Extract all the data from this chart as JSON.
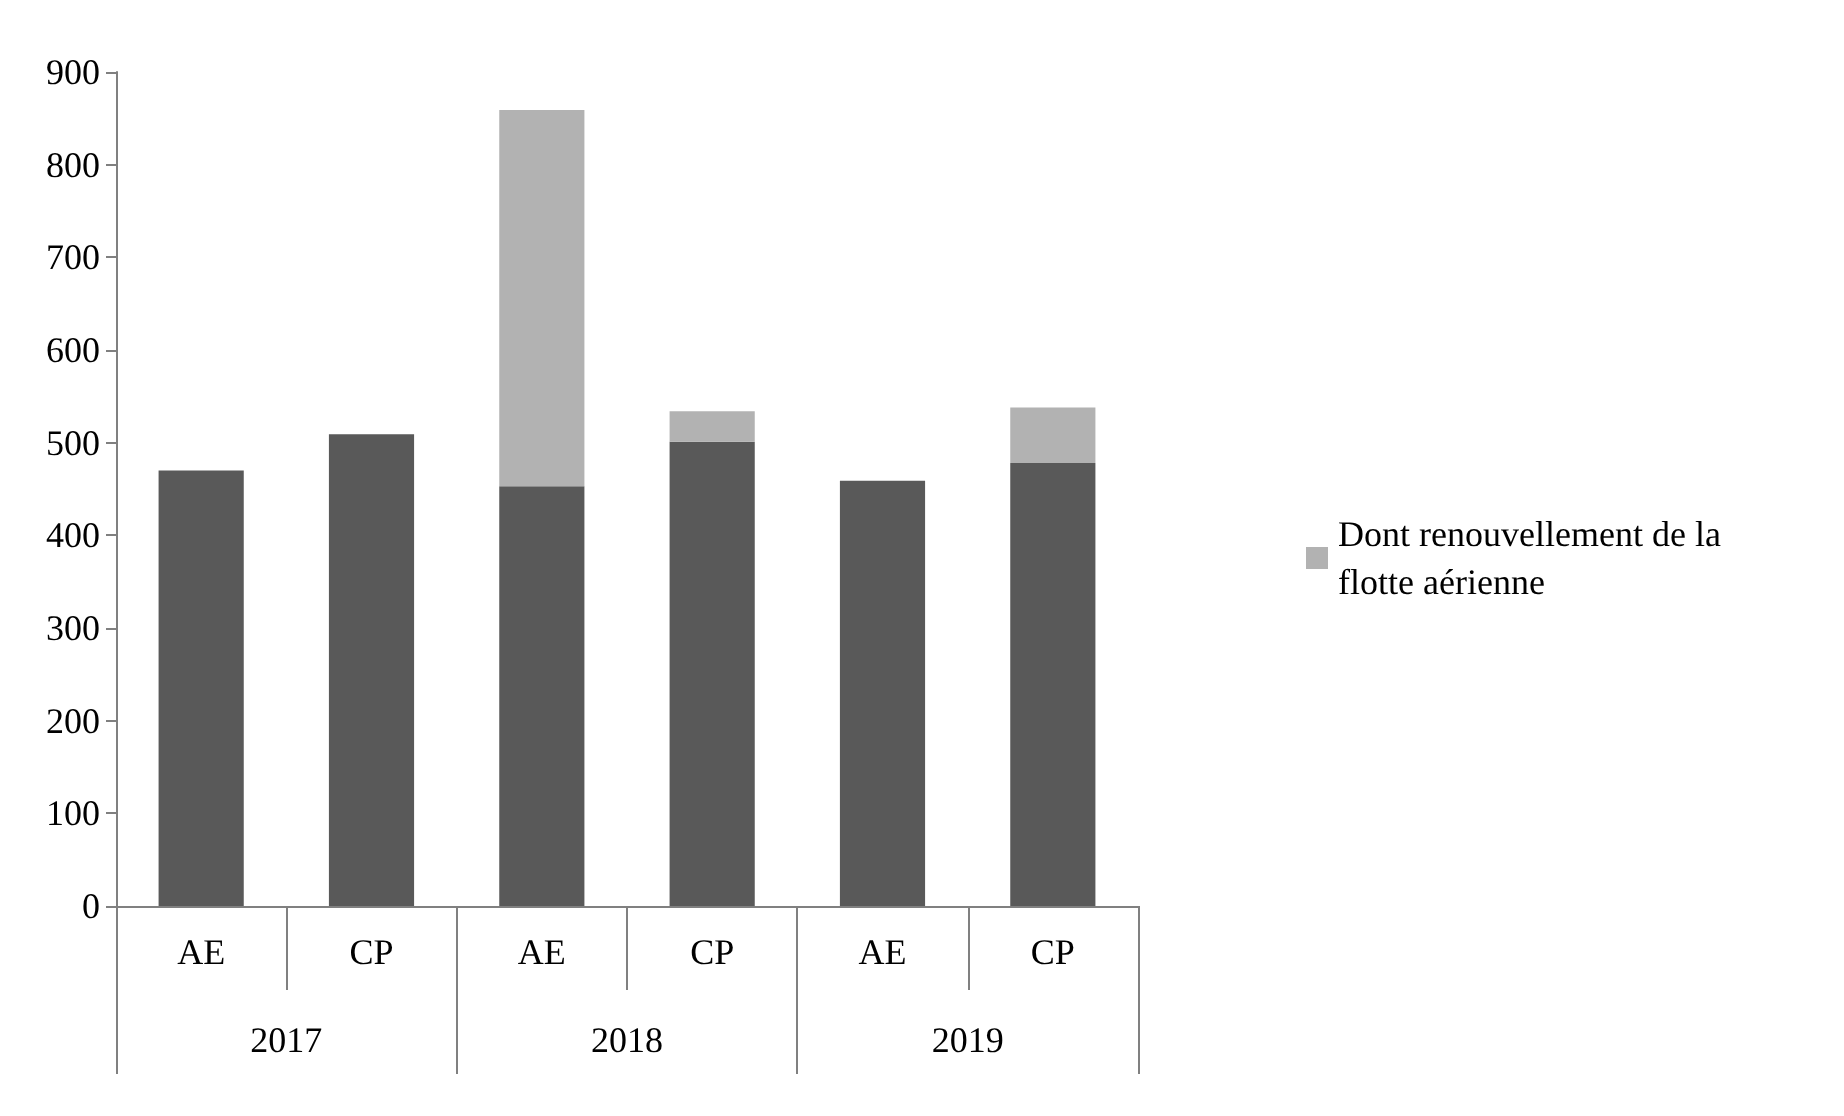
{
  "chart_data": {
    "type": "bar",
    "stacked": true,
    "categories": [
      "AE",
      "CP",
      "AE",
      "CP",
      "AE",
      "CP"
    ],
    "series": [
      {
        "color": "#595959",
        "values": [
          470,
          509,
          453,
          501,
          459,
          478
        ]
      },
      {
        "name": "Dont renouvellement de la flotte aérienne",
        "color": "#b2b2b2",
        "values": [
          null,
          null,
          406,
          33,
          null,
          60
        ]
      }
    ],
    "annotations": [
      "2017",
      "2018",
      "2019"
    ],
    "ylim": [
      0,
      900
    ],
    "yticks": [
      0,
      100,
      200,
      300,
      400,
      500,
      600,
      700,
      800,
      900
    ],
    "grid": false,
    "legend": "right"
  }
}
